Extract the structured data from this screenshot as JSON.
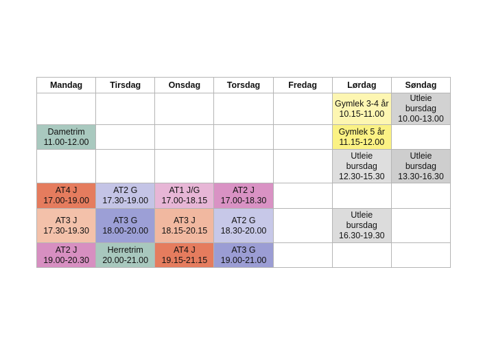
{
  "days": [
    "Mandag",
    "Tirsdag",
    "Onsdag",
    "Torsdag",
    "Fredag",
    "Lørdag",
    "Søndag"
  ],
  "rows": [
    [
      {
        "text": ""
      },
      {
        "text": ""
      },
      {
        "text": ""
      },
      {
        "text": ""
      },
      {
        "text": ""
      },
      {
        "text": "Gymlek 3-4 år\n10.15-11.00",
        "color": "#fdf6b2"
      },
      {
        "text": "Utleie\nbursdag\n10.00-13.00",
        "color": "#d2d2d2"
      }
    ],
    [
      {
        "text": "Dametrim\n11.00-12.00",
        "color": "#a9c9bf"
      },
      {
        "text": ""
      },
      {
        "text": ""
      },
      {
        "text": ""
      },
      {
        "text": ""
      },
      {
        "text": "Gymlek 5 år\n11.15-12.00",
        "color": "#fbf284"
      },
      {
        "text": ""
      }
    ],
    [
      {
        "text": ""
      },
      {
        "text": ""
      },
      {
        "text": ""
      },
      {
        "text": ""
      },
      {
        "text": ""
      },
      {
        "text": "Utleie\nbursdag\n12.30-15.30",
        "color": "#dedede"
      },
      {
        "text": "Utleie\nbursdag\n13.30-16.30",
        "color": "#cecece"
      }
    ],
    [
      {
        "text": "AT4 J\n17.00-19.00",
        "color": "#e57c5e"
      },
      {
        "text": "AT2 G\n17.30-19.00",
        "color": "#c4c4e6"
      },
      {
        "text": "AT1 J/G\n17.00-18.15",
        "color": "#e7b6d6"
      },
      {
        "text": "AT2 J\n17.00-18.30",
        "color": "#d992c4"
      },
      {
        "text": ""
      },
      {
        "text": ""
      },
      {
        "text": ""
      }
    ],
    [
      {
        "text": "AT3 J\n17.30-19.30",
        "color": "#f3c1aa"
      },
      {
        "text": "AT3 G\n18.00-20.00",
        "color": "#9c9fd6"
      },
      {
        "text": "AT3 J\n18.15-20.15",
        "color": "#f1b8a0"
      },
      {
        "text": "AT2 G\n18.30-20.00",
        "color": "#c7c8e8"
      },
      {
        "text": ""
      },
      {
        "text": "Utleie\nbursdag\n16.30-19.30",
        "color": "#dcdcdc"
      },
      {
        "text": ""
      }
    ],
    [
      {
        "text": "AT2 J\n19.00-20.30",
        "color": "#d78fc1"
      },
      {
        "text": "Herretrim\n20.00-21.00",
        "color": "#a8c8be"
      },
      {
        "text": "AT4 J\n19.15-21.15",
        "color": "#e57c5e"
      },
      {
        "text": "AT3 G\n19.00-21.00",
        "color": "#9b9dd4"
      },
      {
        "text": ""
      },
      {
        "text": ""
      },
      {
        "text": ""
      }
    ]
  ]
}
